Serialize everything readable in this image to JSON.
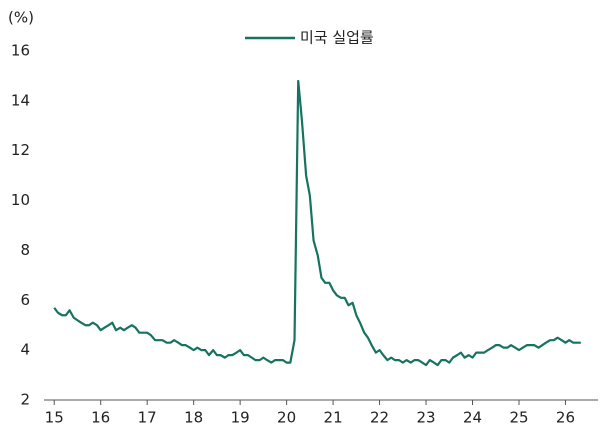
{
  "chart_data": {
    "type": "line",
    "y_label": "(%)",
    "series": [
      {
        "name": "미국 실업률",
        "color": "#16735f",
        "x": [
          15,
          15.08,
          15.17,
          15.25,
          15.33,
          15.42,
          15.5,
          15.58,
          15.67,
          15.75,
          15.83,
          15.92,
          16,
          16.08,
          16.17,
          16.25,
          16.33,
          16.42,
          16.5,
          16.58,
          16.67,
          16.75,
          16.83,
          16.92,
          17,
          17.08,
          17.17,
          17.25,
          17.33,
          17.42,
          17.5,
          17.58,
          17.67,
          17.75,
          17.83,
          17.92,
          18,
          18.08,
          18.17,
          18.25,
          18.33,
          18.42,
          18.5,
          18.58,
          18.67,
          18.75,
          18.83,
          18.92,
          19,
          19.08,
          19.17,
          19.25,
          19.33,
          19.42,
          19.5,
          19.58,
          19.67,
          19.75,
          19.83,
          19.92,
          20,
          20.08,
          20.17,
          20.25,
          20.33,
          20.42,
          20.5,
          20.58,
          20.67,
          20.75,
          20.83,
          20.92,
          21,
          21.08,
          21.17,
          21.25,
          21.33,
          21.42,
          21.5,
          21.58,
          21.67,
          21.75,
          21.83,
          21.92,
          22,
          22.08,
          22.17,
          22.25,
          22.33,
          22.42,
          22.5,
          22.58,
          22.67,
          22.75,
          22.83,
          22.92,
          23,
          23.08,
          23.17,
          23.25,
          23.33,
          23.42,
          23.5,
          23.58,
          23.67,
          23.75,
          23.83,
          23.92,
          24,
          24.08,
          24.17,
          24.25,
          24.33,
          24.42,
          24.5,
          24.58,
          24.67,
          24.75,
          24.83,
          24.92,
          25,
          25.08,
          25.17,
          25.25,
          25.33,
          25.42,
          25.5,
          25.58,
          25.67,
          25.75,
          25.83,
          25.92,
          26,
          26.08,
          26.17,
          26.25,
          26.33
        ],
        "values": [
          5.7,
          5.5,
          5.4,
          5.4,
          5.6,
          5.3,
          5.2,
          5.1,
          5.0,
          5.0,
          5.1,
          5.0,
          4.8,
          4.9,
          5.0,
          5.1,
          4.8,
          4.9,
          4.8,
          4.9,
          5.0,
          4.9,
          4.7,
          4.7,
          4.7,
          4.6,
          4.4,
          4.4,
          4.4,
          4.3,
          4.3,
          4.4,
          4.3,
          4.2,
          4.2,
          4.1,
          4.0,
          4.1,
          4.0,
          4.0,
          3.8,
          4.0,
          3.8,
          3.8,
          3.7,
          3.8,
          3.8,
          3.9,
          4.0,
          3.8,
          3.8,
          3.7,
          3.6,
          3.6,
          3.7,
          3.6,
          3.5,
          3.6,
          3.6,
          3.6,
          3.5,
          3.5,
          4.4,
          14.8,
          13.2,
          11.0,
          10.2,
          8.4,
          7.8,
          6.9,
          6.7,
          6.7,
          6.4,
          6.2,
          6.1,
          6.1,
          5.8,
          5.9,
          5.4,
          5.1,
          4.7,
          4.5,
          4.2,
          3.9,
          4.0,
          3.8,
          3.6,
          3.7,
          3.6,
          3.6,
          3.5,
          3.6,
          3.5,
          3.6,
          3.6,
          3.5,
          3.4,
          3.6,
          3.5,
          3.4,
          3.6,
          3.6,
          3.5,
          3.7,
          3.8,
          3.9,
          3.7,
          3.8,
          3.7,
          3.9,
          3.9,
          3.9,
          4.0,
          4.1,
          4.2,
          4.2,
          4.1,
          4.1,
          4.2,
          4.1,
          4.0,
          4.1,
          4.2,
          4.2,
          4.2,
          4.1,
          4.2,
          4.3,
          4.4,
          4.4,
          4.5,
          4.4,
          4.3,
          4.4,
          4.3,
          4.3,
          4.3
        ]
      }
    ],
    "xlim": [
      14.78,
      26.7
    ],
    "xticks": [
      15,
      16,
      17,
      18,
      19,
      20,
      21,
      22,
      23,
      24,
      25,
      26
    ],
    "ylim": [
      2,
      16
    ],
    "yticks": [
      2,
      4,
      6,
      8,
      10,
      12,
      14,
      16
    ],
    "grid": false,
    "legend": "top"
  }
}
